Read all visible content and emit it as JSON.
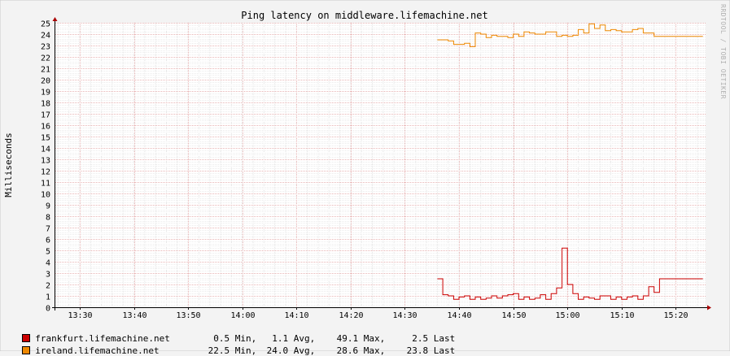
{
  "chart_data": {
    "type": "line",
    "title": "Ping latency on middleware.lifemachine.net",
    "ylabel": "Milliseconds",
    "xlabel": "",
    "ylim": [
      0,
      25
    ],
    "y_ticks": [
      "0",
      "1",
      "2",
      "3",
      "4",
      "5",
      "6",
      "7",
      "8",
      "9",
      "10",
      "11",
      "12",
      "13",
      "14",
      "15",
      "16",
      "17",
      "18",
      "19",
      "20",
      "21",
      "22",
      "23",
      "24",
      "25"
    ],
    "x_ticks": [
      "13:30",
      "13:40",
      "13:50",
      "14:00",
      "14:10",
      "14:20",
      "14:30",
      "14:40",
      "14:50",
      "15:00",
      "15:10",
      "15:20"
    ],
    "xlim": [
      "13:25:30",
      "15:25:30"
    ],
    "grid": true,
    "step": true,
    "series": [
      {
        "name": "frankfurt.lifemachine.net",
        "color": "#cc0000",
        "x": [
          "14:36:00",
          "14:37:00",
          "14:38:00",
          "14:39:00",
          "14:40:00",
          "14:41:00",
          "14:42:00",
          "14:43:00",
          "14:44:00",
          "14:45:00",
          "14:46:00",
          "14:47:00",
          "14:48:00",
          "14:49:00",
          "14:50:00",
          "14:51:00",
          "14:52:00",
          "14:53:00",
          "14:54:00",
          "14:55:00",
          "14:56:00",
          "14:57:00",
          "14:58:00",
          "14:59:00",
          "15:00:00",
          "15:01:00",
          "15:02:00",
          "15:03:00",
          "15:04:00",
          "15:05:00",
          "15:06:00",
          "15:07:00",
          "15:08:00",
          "15:09:00",
          "15:10:00",
          "15:11:00",
          "15:12:00",
          "15:13:00",
          "15:14:00",
          "15:15:00",
          "15:16:00",
          "15:17:00",
          "15:18:00",
          "15:19:00",
          "15:20:00",
          "15:21:00",
          "15:22:00",
          "15:23:00",
          "15:24:00"
        ],
        "values": [
          2.5,
          1.1,
          1.0,
          0.7,
          0.9,
          1.0,
          0.7,
          0.9,
          0.7,
          0.8,
          1.0,
          0.8,
          1.0,
          1.1,
          1.2,
          0.7,
          0.9,
          0.7,
          0.8,
          1.1,
          0.7,
          1.2,
          1.7,
          5.2,
          2.0,
          1.2,
          0.7,
          0.9,
          0.8,
          0.7,
          1.0,
          1.0,
          0.7,
          0.9,
          0.7,
          0.9,
          1.0,
          0.7,
          1.0,
          1.8,
          1.3,
          2.5,
          2.5,
          2.5,
          2.5,
          2.5,
          2.5,
          2.5,
          2.5
        ],
        "stats": {
          "min": "0.5 Min,",
          "avg": "1.1 Avg,",
          "max": "49.1 Max,",
          "last": "2.5 Last"
        }
      },
      {
        "name": "ireland.lifemachine.net",
        "color": "#ee8800",
        "x": [
          "14:36:00",
          "14:37:00",
          "14:38:00",
          "14:39:00",
          "14:40:00",
          "14:41:00",
          "14:42:00",
          "14:43:00",
          "14:44:00",
          "14:45:00",
          "14:46:00",
          "14:47:00",
          "14:48:00",
          "14:49:00",
          "14:50:00",
          "14:51:00",
          "14:52:00",
          "14:53:00",
          "14:54:00",
          "14:55:00",
          "14:56:00",
          "14:57:00",
          "14:58:00",
          "14:59:00",
          "15:00:00",
          "15:01:00",
          "15:02:00",
          "15:03:00",
          "15:04:00",
          "15:05:00",
          "15:06:00",
          "15:07:00",
          "15:08:00",
          "15:09:00",
          "15:10:00",
          "15:11:00",
          "15:12:00",
          "15:13:00",
          "15:14:00",
          "15:15:00",
          "15:16:00",
          "15:17:00",
          "15:18:00",
          "15:19:00",
          "15:20:00",
          "15:21:00",
          "15:22:00",
          "15:23:00",
          "15:24:00"
        ],
        "values": [
          23.5,
          23.5,
          23.4,
          23.1,
          23.1,
          23.2,
          22.9,
          24.1,
          24.0,
          23.7,
          23.9,
          23.8,
          23.8,
          23.7,
          24.0,
          23.8,
          24.2,
          24.1,
          24.0,
          24.0,
          24.2,
          24.2,
          23.8,
          23.9,
          23.8,
          23.9,
          24.4,
          24.1,
          24.9,
          24.5,
          24.8,
          24.3,
          24.4,
          24.3,
          24.2,
          24.2,
          24.4,
          24.5,
          24.1,
          24.1,
          23.8,
          23.8,
          23.8,
          23.8,
          23.8,
          23.8,
          23.8,
          23.8,
          23.8
        ],
        "stats": {
          "min": "22.5 Min,",
          "avg": "24.0 Avg,",
          "max": "28.6 Max,",
          "last": "23.8 Last"
        }
      }
    ]
  },
  "watermark": "RRDTOOL / TOBI OETIKER"
}
